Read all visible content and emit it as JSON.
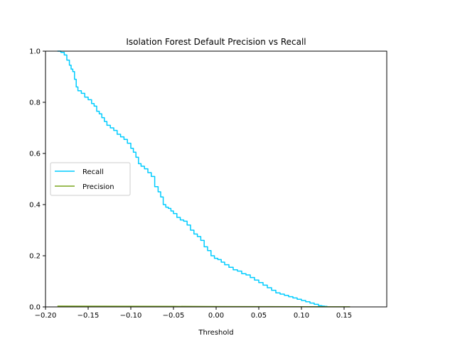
{
  "chart_data": {
    "type": "line",
    "title": "Isolation Forest Default Precision vs Recall",
    "xlabel": "Threshold",
    "ylabel": "",
    "xlim": [
      -0.2,
      0.2
    ],
    "ylim": [
      0.0,
      1.0
    ],
    "xticks": [
      -0.2,
      -0.15,
      -0.1,
      -0.05,
      0.0,
      0.05,
      0.1,
      0.15
    ],
    "xtick_labels": [
      "−0.20",
      "−0.15",
      "−0.10",
      "−0.05",
      "0.00",
      "0.05",
      "0.10",
      "0.15"
    ],
    "yticks": [
      0.0,
      0.2,
      0.4,
      0.6,
      0.8,
      1.0
    ],
    "ytick_labels": [
      "0.0",
      "0.2",
      "0.4",
      "0.6",
      "0.8",
      "1.0"
    ],
    "grid": false,
    "legend_position": "center-left",
    "series": [
      {
        "name": "Recall",
        "color": "#00ccff",
        "step": true,
        "x": [
          -0.186,
          -0.182,
          -0.178,
          -0.175,
          -0.172,
          -0.17,
          -0.168,
          -0.166,
          -0.164,
          -0.162,
          -0.158,
          -0.154,
          -0.15,
          -0.146,
          -0.143,
          -0.14,
          -0.137,
          -0.134,
          -0.131,
          -0.128,
          -0.124,
          -0.12,
          -0.116,
          -0.112,
          -0.108,
          -0.104,
          -0.1,
          -0.097,
          -0.094,
          -0.091,
          -0.088,
          -0.084,
          -0.08,
          -0.076,
          -0.072,
          -0.068,
          -0.065,
          -0.062,
          -0.059,
          -0.056,
          -0.053,
          -0.05,
          -0.046,
          -0.042,
          -0.038,
          -0.034,
          -0.03,
          -0.026,
          -0.022,
          -0.018,
          -0.014,
          -0.01,
          -0.006,
          -0.002,
          0.002,
          0.006,
          0.01,
          0.015,
          0.02,
          0.025,
          0.03,
          0.035,
          0.04,
          0.045,
          0.05,
          0.055,
          0.06,
          0.065,
          0.07,
          0.075,
          0.08,
          0.085,
          0.09,
          0.095,
          0.1,
          0.105,
          0.11,
          0.115,
          0.12,
          0.124,
          0.127,
          0.13
        ],
        "y": [
          1.0,
          0.995,
          0.985,
          0.965,
          0.945,
          0.93,
          0.92,
          0.89,
          0.86,
          0.845,
          0.835,
          0.82,
          0.81,
          0.795,
          0.785,
          0.765,
          0.755,
          0.74,
          0.725,
          0.71,
          0.7,
          0.69,
          0.675,
          0.665,
          0.655,
          0.64,
          0.62,
          0.605,
          0.585,
          0.56,
          0.55,
          0.54,
          0.525,
          0.51,
          0.47,
          0.45,
          0.43,
          0.4,
          0.39,
          0.385,
          0.375,
          0.365,
          0.35,
          0.34,
          0.335,
          0.32,
          0.3,
          0.285,
          0.275,
          0.26,
          0.235,
          0.22,
          0.2,
          0.19,
          0.185,
          0.175,
          0.165,
          0.155,
          0.145,
          0.14,
          0.13,
          0.125,
          0.115,
          0.105,
          0.095,
          0.085,
          0.075,
          0.065,
          0.055,
          0.05,
          0.045,
          0.04,
          0.035,
          0.03,
          0.025,
          0.02,
          0.015,
          0.01,
          0.005,
          0.003,
          0.002,
          0.0
        ]
      },
      {
        "name": "Precision",
        "color": "#7aa61e",
        "step": false,
        "x": [
          -0.186,
          -0.15,
          -0.1,
          -0.05,
          0.0,
          0.05,
          0.1,
          0.157
        ],
        "y": [
          0.003,
          0.0028,
          0.0025,
          0.002,
          0.0015,
          0.001,
          0.0008,
          0.0005
        ]
      }
    ]
  }
}
